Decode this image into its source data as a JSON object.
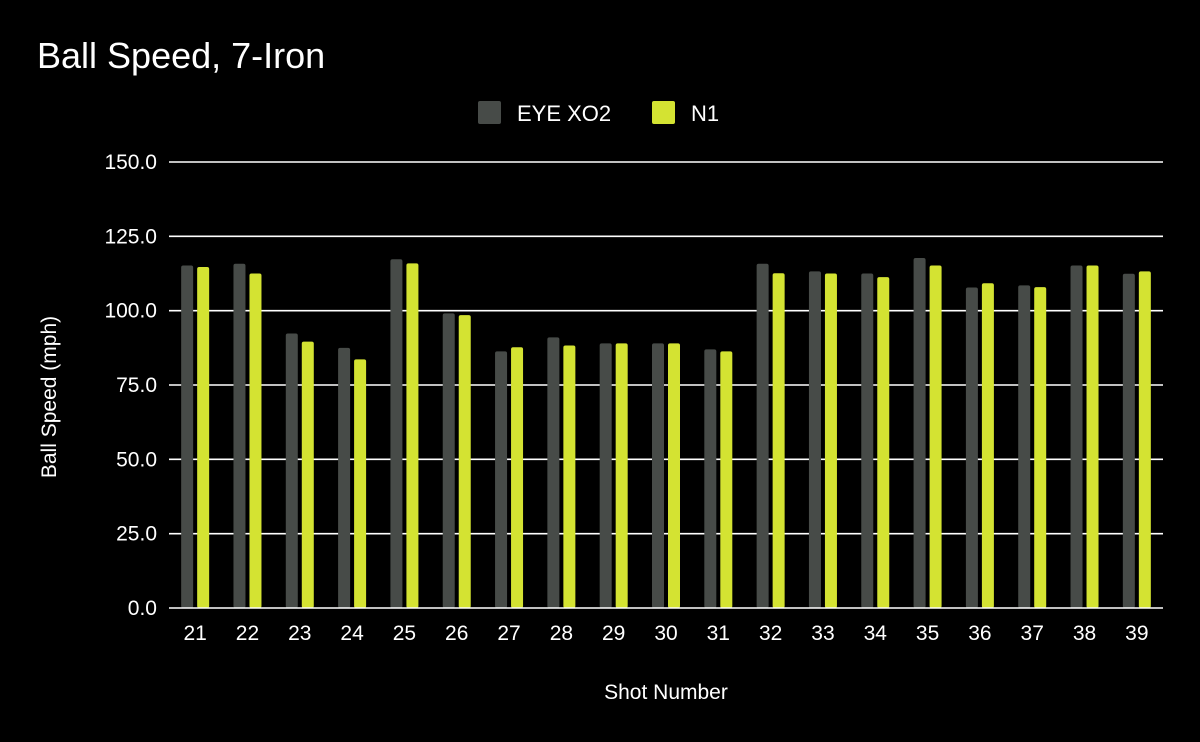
{
  "chart_data": {
    "type": "bar",
    "title": "Ball Speed, 7-Iron",
    "xlabel": "Shot Number",
    "ylabel": "Ball Speed (mph)",
    "ylim": [
      0,
      150
    ],
    "yticks": [
      "0.0",
      "25.0",
      "50.0",
      "75.0",
      "100.0",
      "125.0",
      "150.0"
    ],
    "grid": true,
    "legend_position": "top-center",
    "categories": [
      "21",
      "22",
      "23",
      "24",
      "25",
      "26",
      "27",
      "28",
      "29",
      "30",
      "31",
      "32",
      "33",
      "34",
      "35",
      "36",
      "37",
      "38",
      "39"
    ],
    "series": [
      {
        "name": "EYE XO2",
        "color": "#474b48",
        "values": [
          115.2,
          115.8,
          92.3,
          87.5,
          117.3,
          99.1,
          86.3,
          91.0,
          89.0,
          89.0,
          87.0,
          115.8,
          113.2,
          112.5,
          117.7,
          107.8,
          108.5,
          115.2,
          112.4
        ]
      },
      {
        "name": "N1",
        "color": "#d4e332",
        "values": [
          114.7,
          112.5,
          89.6,
          83.6,
          115.9,
          98.5,
          87.7,
          88.3,
          89.0,
          89.0,
          86.3,
          112.6,
          112.5,
          111.3,
          115.2,
          109.2,
          107.9,
          115.2,
          113.2
        ]
      }
    ]
  }
}
